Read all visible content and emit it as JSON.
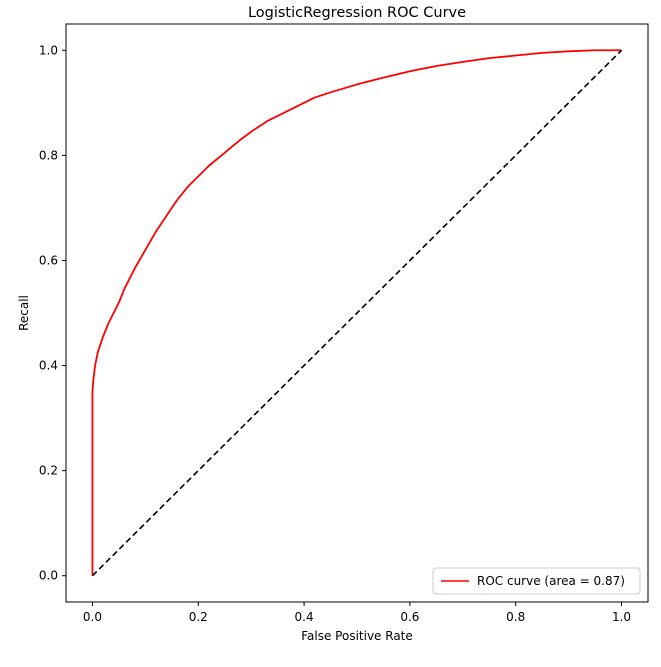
{
  "chart_data": {
    "type": "line",
    "title": "LogisticRegression ROC Curve",
    "xlabel": "False Positive Rate",
    "ylabel": "Recall",
    "xlim": [
      -0.05,
      1.05
    ],
    "ylim": [
      -0.05,
      1.05
    ],
    "x_ticks": [
      "0.0",
      "0.2",
      "0.4",
      "0.6",
      "0.8",
      "1.0"
    ],
    "y_ticks": [
      "0.0",
      "0.2",
      "0.4",
      "0.6",
      "0.8",
      "1.0"
    ],
    "grid": false,
    "legend_position": "lower right",
    "series": [
      {
        "name": "ROC curve (area = 0.87)",
        "color": "#ff0000",
        "line_style": "solid",
        "x": [
          0.0,
          0.0,
          0.002,
          0.005,
          0.01,
          0.015,
          0.02,
          0.03,
          0.04,
          0.05,
          0.06,
          0.08,
          0.1,
          0.12,
          0.14,
          0.16,
          0.18,
          0.2,
          0.22,
          0.25,
          0.28,
          0.3,
          0.33,
          0.36,
          0.38,
          0.4,
          0.42,
          0.45,
          0.5,
          0.55,
          0.6,
          0.65,
          0.7,
          0.75,
          0.8,
          0.85,
          0.9,
          0.95,
          1.0
        ],
        "y": [
          0.0,
          0.35,
          0.375,
          0.4,
          0.425,
          0.44,
          0.455,
          0.48,
          0.5,
          0.52,
          0.545,
          0.585,
          0.62,
          0.655,
          0.685,
          0.715,
          0.74,
          0.76,
          0.78,
          0.805,
          0.83,
          0.845,
          0.865,
          0.88,
          0.89,
          0.9,
          0.91,
          0.92,
          0.935,
          0.948,
          0.96,
          0.97,
          0.978,
          0.985,
          0.99,
          0.995,
          0.998,
          1.0,
          1.0
        ]
      },
      {
        "name": "",
        "color": "#000000",
        "line_style": "dashed",
        "x": [
          0.0,
          1.0
        ],
        "y": [
          0.0,
          1.0
        ]
      }
    ]
  }
}
